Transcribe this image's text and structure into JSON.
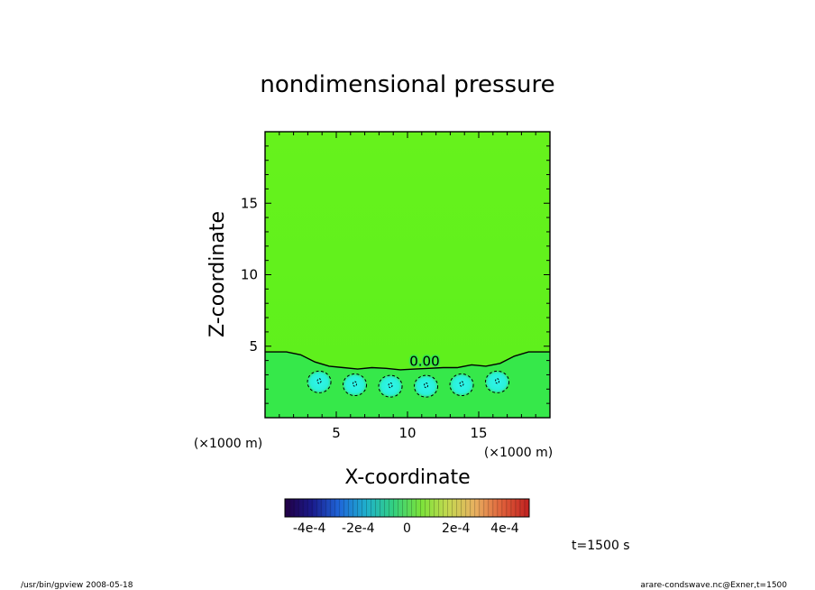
{
  "chart_data": {
    "type": "heatmap",
    "title": "nondimensional pressure",
    "xlabel": "X-coordinate",
    "ylabel": "Z-coordinate",
    "xunit": "(×1000 m)",
    "yunit": "(×1000 m)",
    "xlim": [
      0,
      20
    ],
    "ylim": [
      0,
      20
    ],
    "xticks": [
      5,
      10,
      15
    ],
    "yticks": [
      5,
      10,
      15
    ],
    "contour_label": "0.00",
    "contour_zero_z": [
      [
        0,
        4.6
      ],
      [
        1.5,
        4.6
      ],
      [
        2.5,
        4.4
      ],
      [
        3.5,
        3.9
      ],
      [
        4.5,
        3.6
      ],
      [
        5.5,
        3.5
      ],
      [
        6.5,
        3.4
      ],
      [
        7.5,
        3.5
      ],
      [
        8.5,
        3.45
      ],
      [
        9.5,
        3.35
      ],
      [
        10.5,
        3.4
      ],
      [
        11.5,
        3.45
      ],
      [
        12.5,
        3.5
      ],
      [
        13.5,
        3.5
      ],
      [
        14.5,
        3.7
      ],
      [
        15.5,
        3.6
      ],
      [
        16.5,
        3.8
      ],
      [
        17.5,
        4.3
      ],
      [
        18.5,
        4.6
      ],
      [
        20,
        4.6
      ]
    ],
    "cells": [
      {
        "x": 3.8,
        "z": 2.5,
        "value": -8e-05
      },
      {
        "x": 6.3,
        "z": 2.3,
        "value": -8e-05
      },
      {
        "x": 8.8,
        "z": 2.2,
        "value": -8e-05
      },
      {
        "x": 11.3,
        "z": 2.2,
        "value": -8e-05
      },
      {
        "x": 13.8,
        "z": 2.3,
        "value": -8e-05
      },
      {
        "x": 16.3,
        "z": 2.5,
        "value": -8e-05
      }
    ],
    "colorbar": {
      "ticks": [
        "-4e-4",
        "-2e-4",
        "0",
        "2e-4",
        "4e-4"
      ],
      "range": [
        -0.0005,
        0.0005
      ],
      "colors": [
        "#220044",
        "#1a1a8c",
        "#1f66d9",
        "#1fb0cc",
        "#33d080",
        "#7ae23a",
        "#c4d850",
        "#e8b060",
        "#e0603a",
        "#c02020"
      ]
    },
    "background_color": "#5ff21a",
    "lower_region_color": "#33e64d",
    "cell_color": "#2ef2e0"
  },
  "footer": {
    "time": "t=1500 s",
    "program": "/usr/bin/gpview   2008-05-18",
    "source": "arare-condswave.nc@Exner,t=1500"
  }
}
